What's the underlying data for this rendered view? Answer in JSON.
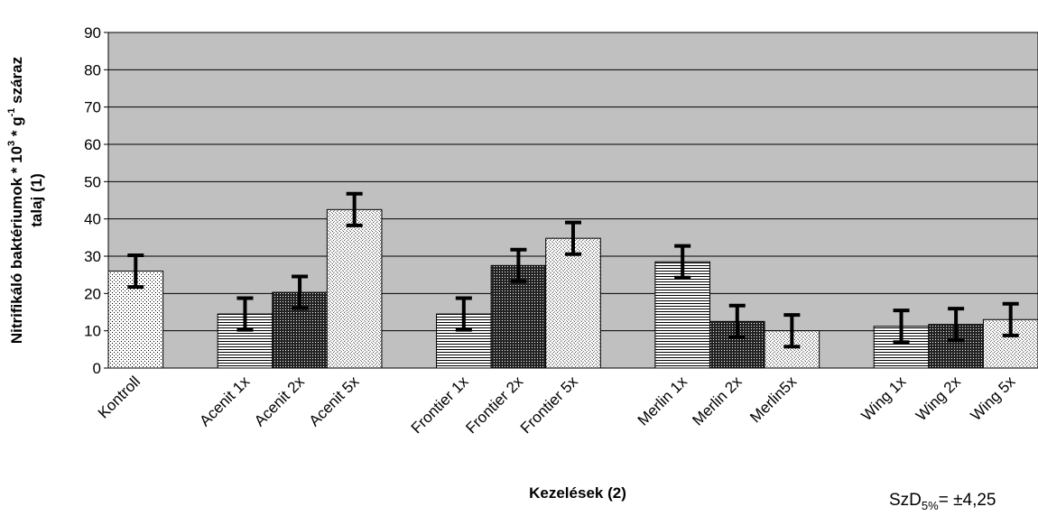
{
  "chart_data": {
    "type": "bar",
    "categories": [
      "Kontroll",
      "Acenit 1x",
      "Acenit 2x",
      "Acenit 5x",
      "Frontier 1x",
      "Frontier 2x",
      "Frontier 5x",
      "Merlin 1x",
      "Merlin 2x",
      "Merlin5x",
      "Wing 1x",
      "Wing 2x",
      "Wing 5x"
    ],
    "values": [
      26,
      14.5,
      20.3,
      42.5,
      14.5,
      27.5,
      34.8,
      28.5,
      12.5,
      10,
      11.2,
      11.7,
      13
    ],
    "error": [
      4.25,
      4.25,
      4.25,
      4.25,
      4.25,
      4.25,
      4.25,
      4.25,
      4.25,
      4.25,
      4.25,
      4.25,
      4.25
    ],
    "patterns": [
      "dots",
      "hlines",
      "dense",
      "light",
      "hlines",
      "dense",
      "light",
      "hlines",
      "dense",
      "light",
      "hlines",
      "dense",
      "light"
    ],
    "ylim": [
      0,
      90
    ],
    "yticks": [
      0,
      10,
      20,
      30,
      40,
      50,
      60,
      70,
      80,
      90
    ],
    "grid": true,
    "xlabel": "Kezelések (2)",
    "ylabel_line1": "Nitrifikáló baktériumok * 10",
    "ylabel_sup1": "3",
    "ylabel_mid": " * g",
    "ylabel_sup2": "-1",
    "ylabel_end": " száraz",
    "ylabel_line2": "talaj (1)",
    "annotation": {
      "prefix": "SzD",
      "sub": "5%",
      "suffix": "= ±4,25"
    },
    "colors": {
      "plot_bg": "#c0c0c0",
      "bar_fill": "#ffffff",
      "ink": "#000000"
    }
  }
}
